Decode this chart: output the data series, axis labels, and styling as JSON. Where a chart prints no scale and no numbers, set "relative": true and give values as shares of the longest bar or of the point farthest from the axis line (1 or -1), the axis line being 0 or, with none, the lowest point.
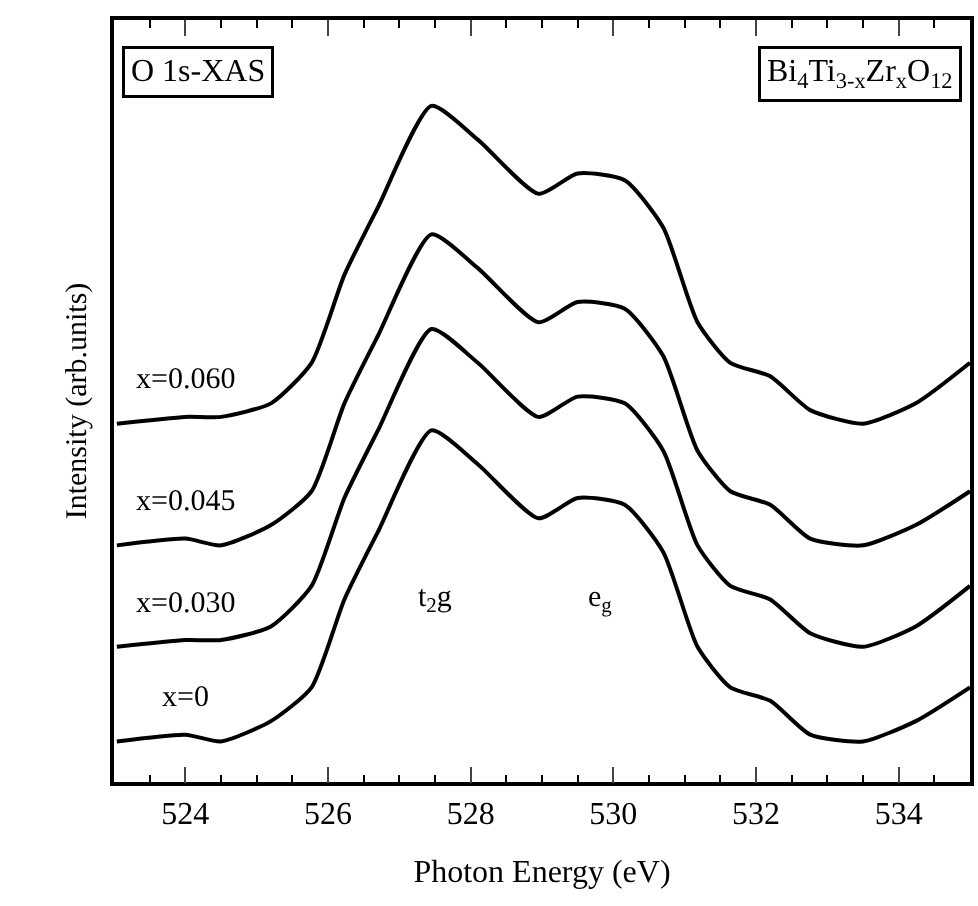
{
  "chart_data": {
    "type": "line",
    "relative": true,
    "xlabel": "Photon Energy (eV)",
    "ylabel": "Intensity (arb.units)",
    "xlim": [
      523,
      535
    ],
    "xticks": [
      524,
      526,
      528,
      530,
      532,
      534
    ],
    "legend": false,
    "marker": "none",
    "line_style": "solid",
    "x": [
      523.04,
      524.0,
      524.5,
      525.2,
      525.77,
      526.23,
      526.7,
      527.45,
      528.1,
      528.95,
      529.5,
      530.16,
      530.7,
      531.18,
      531.64,
      532.2,
      532.76,
      533.5,
      534.24,
      535.0
    ],
    "series": [
      {
        "name": "x=0",
        "color": "#000000",
        "values": [
          0.06,
          0.07,
          0.06,
          0.09,
          0.14,
          0.27,
          0.37,
          0.52,
          0.47,
          0.39,
          0.42,
          0.41,
          0.34,
          0.2,
          0.14,
          0.12,
          0.07,
          0.06,
          0.09,
          0.14
        ]
      },
      {
        "name": "x=0.030",
        "color": "#000000",
        "values": [
          0.2,
          0.21,
          0.21,
          0.23,
          0.29,
          0.42,
          0.52,
          0.67,
          0.62,
          0.54,
          0.57,
          0.56,
          0.49,
          0.35,
          0.29,
          0.27,
          0.22,
          0.2,
          0.23,
          0.29
        ]
      },
      {
        "name": "x=0.045",
        "color": "#000000",
        "values": [
          0.35,
          0.36,
          0.35,
          0.38,
          0.43,
          0.56,
          0.66,
          0.81,
          0.76,
          0.68,
          0.71,
          0.7,
          0.63,
          0.49,
          0.43,
          0.41,
          0.36,
          0.35,
          0.38,
          0.43
        ]
      },
      {
        "name": "x=0.060",
        "color": "#000000",
        "values": [
          0.53,
          0.54,
          0.54,
          0.56,
          0.62,
          0.75,
          0.85,
          1.0,
          0.95,
          0.87,
          0.9,
          0.89,
          0.82,
          0.68,
          0.62,
          0.6,
          0.55,
          0.53,
          0.56,
          0.62
        ]
      }
    ],
    "annotations": [
      "O 1s-XAS",
      "Bi$_{4}$Ti$_{3-x}$Zr$_{x}$O$_{12}$",
      "t$_{2}$g",
      "e$_{g}$"
    ]
  }
}
